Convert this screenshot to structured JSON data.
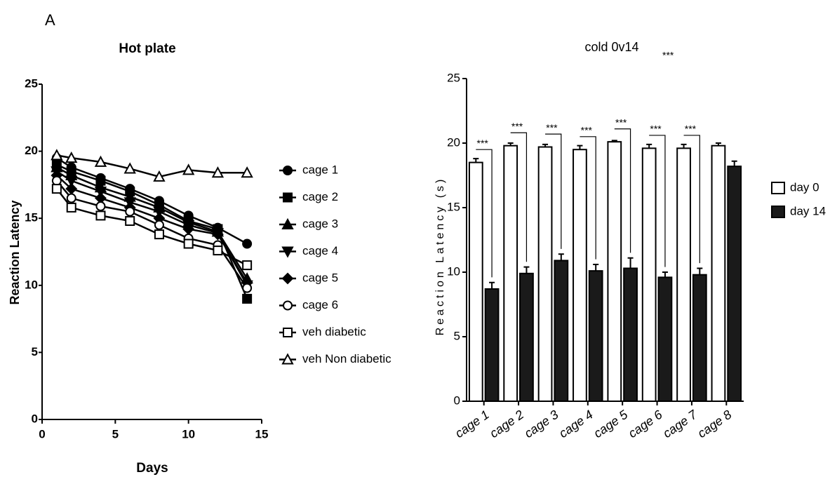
{
  "panel_label": "A",
  "chart_data": [
    {
      "type": "line",
      "title": "Hot plate",
      "x_label": "Days",
      "y_label": "Reaction Latency",
      "x": [
        1,
        2,
        4,
        6,
        8,
        10,
        12,
        14
      ],
      "xlim": [
        0,
        15
      ],
      "xticks": [
        0,
        5,
        10,
        15
      ],
      "ylim": [
        0,
        25
      ],
      "yticks": [
        0,
        5,
        10,
        15,
        20,
        25
      ],
      "series": [
        {
          "name": "cage 1",
          "color": "#000000",
          "values": [
            19.5,
            18.8,
            18.0,
            17.2,
            16.3,
            15.2,
            14.3,
            13.1
          ]
        },
        {
          "name": "cage 2",
          "color": "#000000",
          "values": [
            19.0,
            18.5,
            17.8,
            17.0,
            16.0,
            14.8,
            14.2,
            9.0
          ]
        },
        {
          "name": "cage 3",
          "color": "#000000",
          "values": [
            18.8,
            18.2,
            17.3,
            16.6,
            15.8,
            14.7,
            14.0,
            10.5
          ]
        },
        {
          "name": "cage 4",
          "color": "#000000",
          "values": [
            18.5,
            17.8,
            17.0,
            16.2,
            15.5,
            14.5,
            13.9,
            10.0
          ]
        },
        {
          "name": "cage 5",
          "color": "#000000",
          "values": [
            18.2,
            17.2,
            16.5,
            15.8,
            15.0,
            14.2,
            13.8,
            10.2
          ]
        },
        {
          "name": "cage 6",
          "color": "#000000",
          "values": [
            17.8,
            16.5,
            15.9,
            15.5,
            14.5,
            13.5,
            13.0,
            9.8
          ]
        },
        {
          "name": "veh diabetic",
          "color": "#000000",
          "values": [
            17.2,
            15.8,
            15.2,
            14.8,
            13.8,
            13.1,
            12.6,
            11.5
          ]
        },
        {
          "name": "veh Non diabetic",
          "color": "#000000",
          "values": [
            19.7,
            19.5,
            19.2,
            18.7,
            18.1,
            18.6,
            18.4,
            18.4
          ]
        }
      ]
    },
    {
      "type": "bar",
      "title": "cold 0v14",
      "title_annotation": "***",
      "y_label": "Reaction Latency (s)",
      "categories": [
        "cage 1",
        "cage 2",
        "cage 3",
        "cage 4",
        "cage 5",
        "cage 6",
        "cage 7",
        "cage 8"
      ],
      "ylim": [
        0,
        25
      ],
      "yticks": [
        0,
        5,
        10,
        15,
        20,
        25
      ],
      "series": [
        {
          "name": "day 0",
          "color": "#ffffff",
          "values": [
            18.5,
            19.8,
            19.7,
            19.5,
            20.1,
            19.6,
            19.6,
            19.8
          ],
          "errors": [
            0.3,
            0.2,
            0.2,
            0.3,
            0.1,
            0.3,
            0.3,
            0.2
          ]
        },
        {
          "name": "day 14",
          "color": "#1a1a1a",
          "values": [
            8.7,
            9.9,
            10.9,
            10.1,
            10.3,
            9.6,
            9.8,
            18.2
          ],
          "errors": [
            0.5,
            0.5,
            0.5,
            0.5,
            0.8,
            0.4,
            0.5,
            0.4
          ]
        }
      ],
      "significance": [
        "***",
        "***",
        "***",
        "***",
        "***",
        "***",
        "***"
      ]
    }
  ]
}
